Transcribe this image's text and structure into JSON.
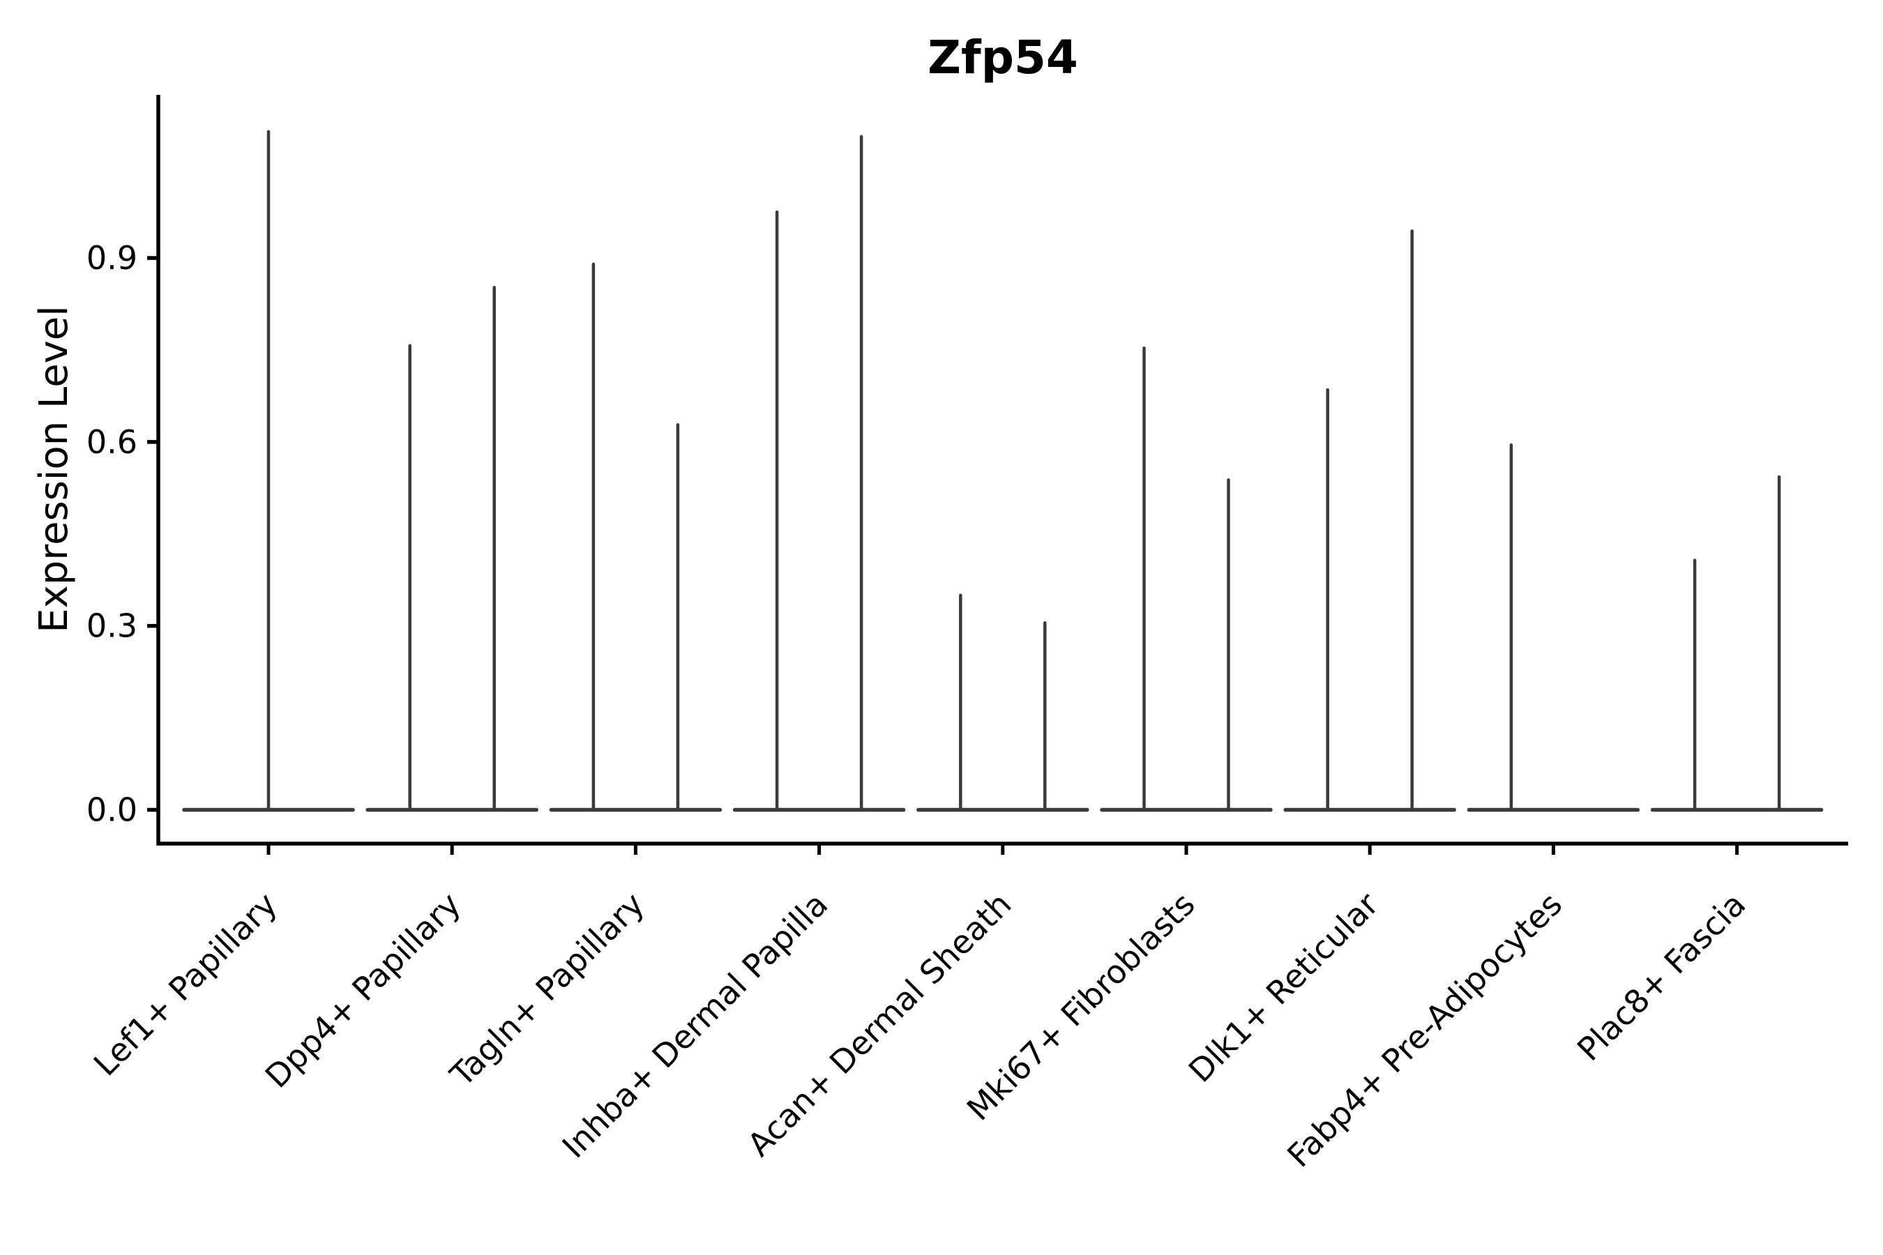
{
  "title": "Zfp54",
  "style": {
    "violin_color": "#3A3A3A",
    "axis_color": "#000000",
    "text_color": "#000000",
    "background": "#FFFFFF"
  },
  "chart_data": {
    "type": "violin",
    "title": "Zfp54",
    "xlabel": "",
    "ylabel": "Expression Level",
    "ylim": [
      -0.055,
      1.166
    ],
    "yticks": [
      0.0,
      0.3,
      0.6,
      0.9
    ],
    "ytick_labels": [
      "0.0",
      "0.3",
      "0.6",
      "0.9"
    ],
    "grid": false,
    "legend": "none",
    "description": "Seurat-style violin plot of Zfp54 expression; each violin collapses to a flat base at 0 with thin density spikes up to the maximum expressing cells. Most categories contain two side-by-side (dodged) violins.",
    "categories": [
      "Lef1+ Papillary",
      "Dpp4+ Papillary",
      "Tagln+ Papillary",
      "Inhba+ Dermal Papilla",
      "Acan+ Dermal Sheath",
      "Mki67+ Fibroblasts",
      "Dlk1+ Reticular",
      "Fabp4+ Pre-Adipocytes",
      "Plac8+ Fascia"
    ],
    "violins": [
      {
        "category": "Lef1+ Papillary",
        "spikes": [
          {
            "side": "center",
            "max": 1.106
          }
        ]
      },
      {
        "category": "Dpp4+ Papillary",
        "spikes": [
          {
            "side": "left",
            "max": 0.757
          },
          {
            "side": "right",
            "max": 0.852
          }
        ]
      },
      {
        "category": "Tagln+ Papillary",
        "spikes": [
          {
            "side": "left",
            "max": 0.89
          },
          {
            "side": "right",
            "max": 0.628
          }
        ]
      },
      {
        "category": "Inhba+ Dermal Papilla",
        "spikes": [
          {
            "side": "left",
            "max": 0.975
          },
          {
            "side": "right",
            "max": 1.098
          }
        ]
      },
      {
        "category": "Acan+ Dermal Sheath",
        "spikes": [
          {
            "side": "left",
            "max": 0.35
          },
          {
            "side": "right",
            "max": 0.305
          }
        ]
      },
      {
        "category": "Mki67+ Fibroblasts",
        "spikes": [
          {
            "side": "left",
            "max": 0.753
          },
          {
            "side": "right",
            "max": 0.538
          }
        ]
      },
      {
        "category": "Dlk1+ Reticular",
        "spikes": [
          {
            "side": "left",
            "max": 0.685
          },
          {
            "side": "right",
            "max": 0.944
          }
        ]
      },
      {
        "category": "Fabp4+ Pre-Adipocytes",
        "spikes": [
          {
            "side": "left",
            "max": 0.595
          }
        ]
      },
      {
        "category": "Plac8+ Fascia",
        "spikes": [
          {
            "side": "left",
            "max": 0.407
          },
          {
            "side": "right",
            "max": 0.543
          }
        ]
      }
    ]
  }
}
